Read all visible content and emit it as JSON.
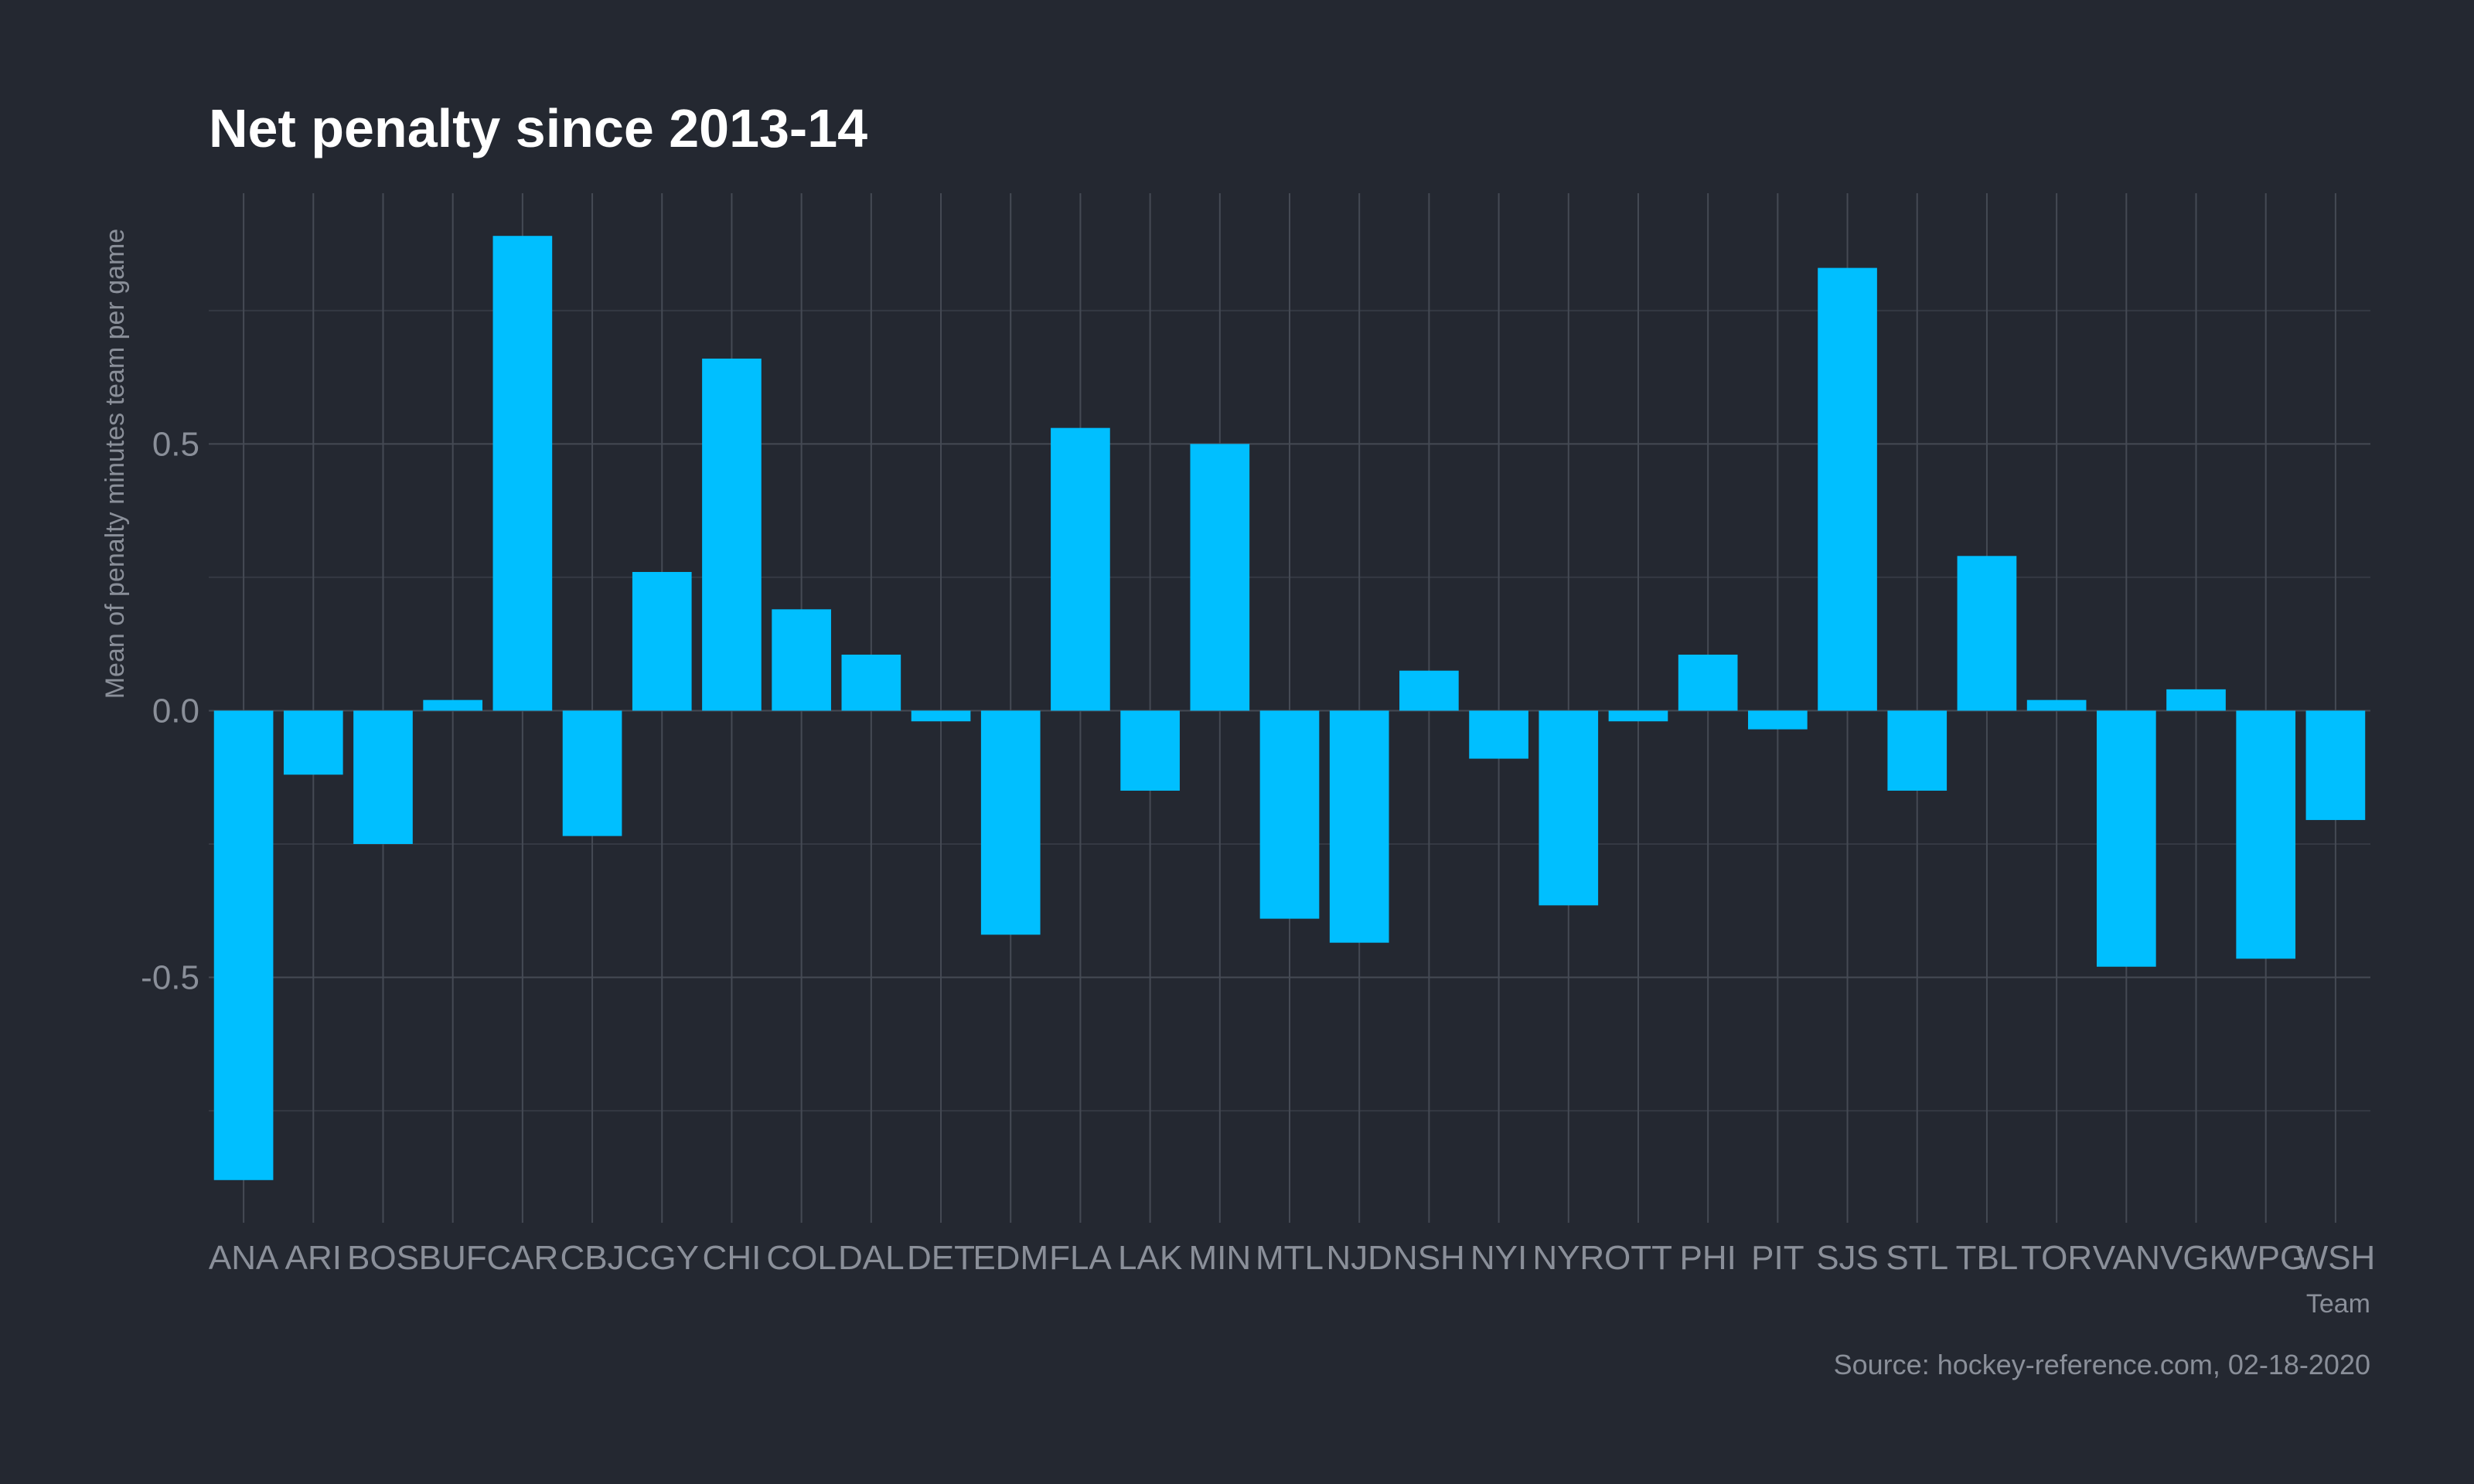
{
  "chart_data": {
    "type": "bar",
    "title": "Net penalty since 2013-14",
    "xlabel": "Team",
    "ylabel": "Mean of penalty minutes team per game",
    "caption": "Source: hockey-reference.com, 02-18-2020",
    "categories": [
      "ANA",
      "ARI",
      "BOS",
      "BUF",
      "CAR",
      "CBJ",
      "CGY",
      "CHI",
      "COL",
      "DAL",
      "DET",
      "EDM",
      "FLA",
      "LAK",
      "MIN",
      "MTL",
      "NJD",
      "NSH",
      "NYI",
      "NYR",
      "OTT",
      "PHI",
      "PIT",
      "SJS",
      "STL",
      "TBL",
      "TOR",
      "VAN",
      "VGK",
      "WPG",
      "WSH"
    ],
    "values": [
      -0.88,
      -0.12,
      -0.25,
      0.02,
      0.89,
      -0.235,
      0.26,
      0.66,
      0.19,
      0.105,
      -0.02,
      -0.42,
      0.53,
      -0.15,
      0.5,
      -0.39,
      -0.435,
      0.075,
      -0.09,
      -0.365,
      -0.02,
      0.105,
      -0.035,
      0.83,
      -0.15,
      0.29,
      0.02,
      -0.48,
      0.04,
      -0.465,
      -0.205
    ],
    "yticks": [
      -0.5,
      0.0,
      0.5
    ],
    "ytick_labels": [
      "-0.5",
      "0.0",
      "0.5"
    ],
    "ylim": [
      -0.96,
      0.97
    ],
    "bar_color": "#00bfff",
    "background": "#242831",
    "grid": true,
    "legend": "none"
  }
}
